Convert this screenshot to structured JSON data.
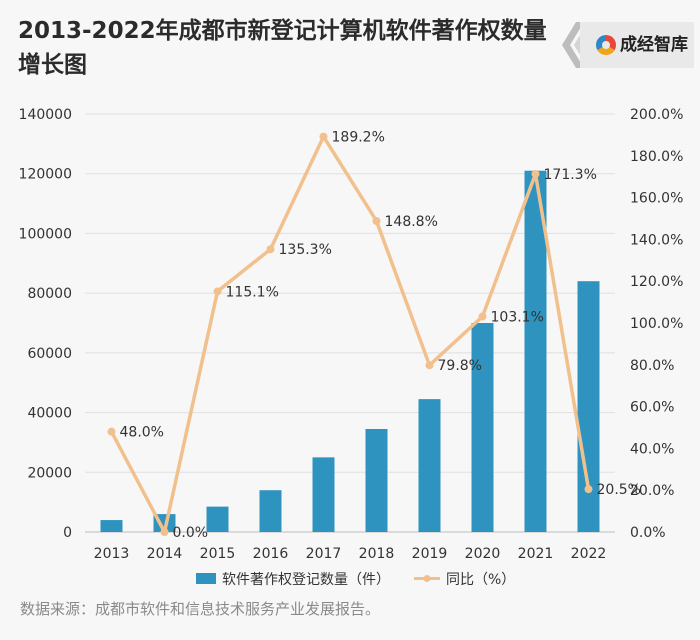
{
  "title": "2013-2022年成都市新登记计算机软件著作权数量增长图",
  "logo": {
    "text": "成经智库"
  },
  "source": "数据来源：成都市软件和信息技术服务产业发展报告。",
  "colors": {
    "bar": "#2f93bf",
    "line": "#f1c08d",
    "grid": "#e0e0e0",
    "text": "#333333"
  },
  "chart_data": {
    "type": "bar",
    "categories": [
      "2013",
      "2014",
      "2015",
      "2016",
      "2017",
      "2018",
      "2019",
      "2020",
      "2021",
      "2022"
    ],
    "series": [
      {
        "name": "软件著作权登记数量（件）",
        "type": "bar",
        "axis": "left",
        "values": [
          4000,
          6000,
          8500,
          14000,
          25000,
          34500,
          44500,
          70000,
          121000,
          84000
        ]
      },
      {
        "name": "同比（%）",
        "type": "line",
        "axis": "right",
        "values": [
          48.0,
          0.0,
          115.1,
          135.3,
          189.2,
          148.8,
          79.8,
          103.1,
          171.3,
          20.5
        ],
        "labels": [
          "48.0%",
          "0.0%",
          "115.1%",
          "135.3%",
          "189.2%",
          "148.8%",
          "79.8%",
          "103.1%",
          "171.3%",
          "20.5%"
        ]
      }
    ],
    "y_left": {
      "min": 0,
      "max": 140000,
      "ticks": [
        "0",
        "20000",
        "40000",
        "60000",
        "80000",
        "100000",
        "120000",
        "140000"
      ]
    },
    "y_right": {
      "min": 0,
      "max": 200,
      "ticks": [
        "0.0%",
        "20.0%",
        "40.0%",
        "60.0%",
        "80.0%",
        "100.0%",
        "120.0%",
        "140.0%",
        "160.0%",
        "180.0%",
        "200.0%"
      ]
    },
    "grid": true,
    "legend": "bottom"
  }
}
